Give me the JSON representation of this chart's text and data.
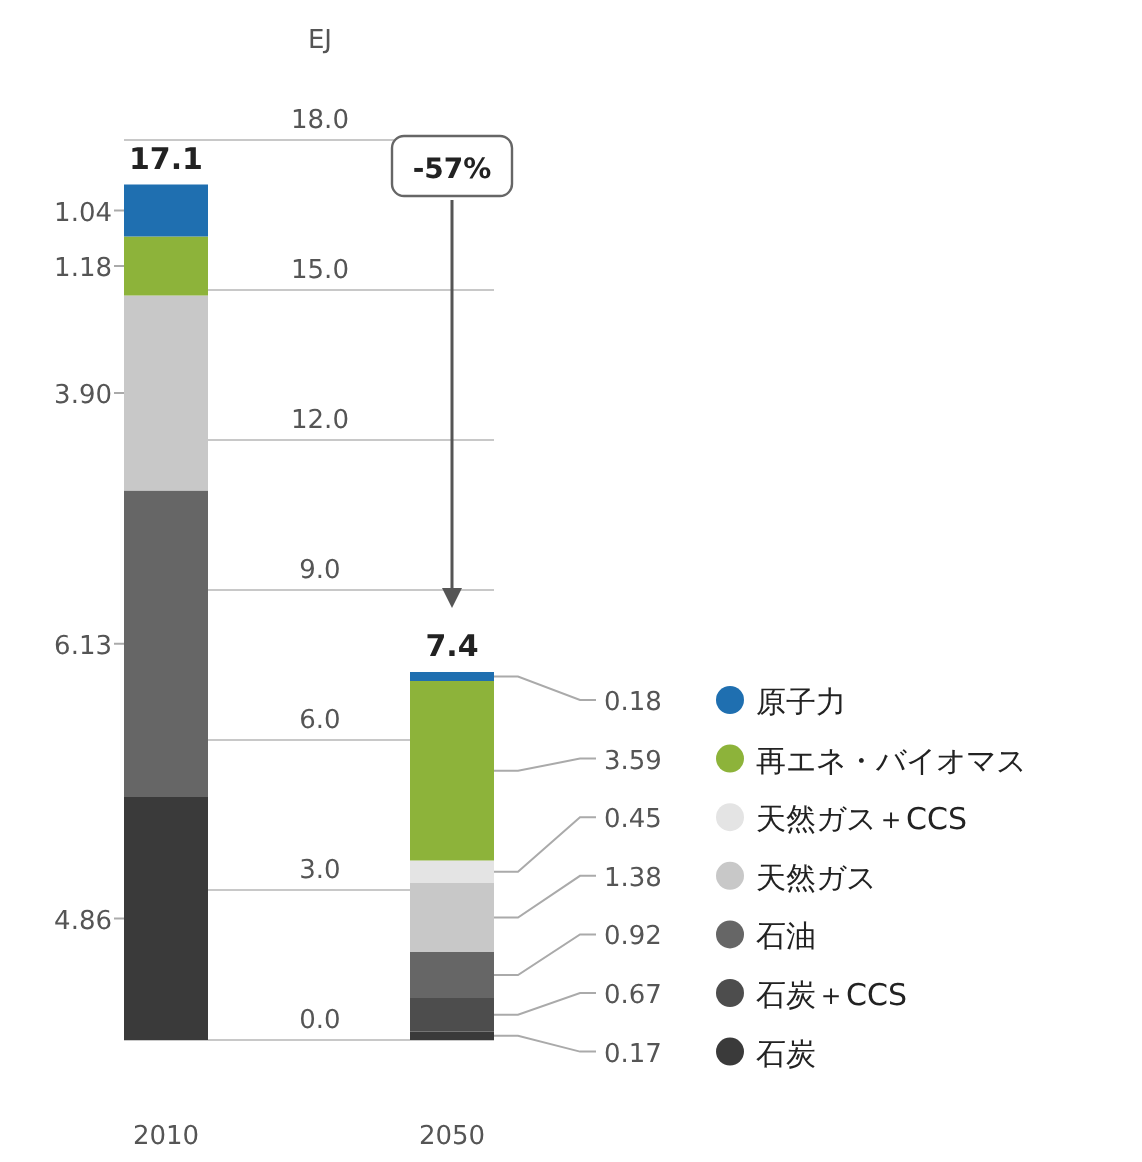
{
  "chart_data": {
    "type": "bar",
    "stacked": true,
    "ylabel": "EJ",
    "categories": [
      "2010",
      "2050"
    ],
    "ylim": [
      0,
      18
    ],
    "yticks": [
      {
        "value": 0,
        "label": "0.0"
      },
      {
        "value": 3,
        "label": "3.0"
      },
      {
        "value": 6,
        "label": "6.0"
      },
      {
        "value": 9,
        "label": "9.0"
      },
      {
        "value": 12,
        "label": "12.0"
      },
      {
        "value": 15,
        "label": "15.0"
      },
      {
        "value": 18,
        "label": "18.0"
      }
    ],
    "series": [
      {
        "name": "石炭",
        "color": "#3a3a3a",
        "values": [
          4.86,
          0.17
        ],
        "value_labels": [
          "4.86",
          "0.17"
        ]
      },
      {
        "name": "石炭＋CCS",
        "color": "#4d4d4d",
        "values": [
          0,
          0.67
        ],
        "value_labels": [
          null,
          "0.67"
        ]
      },
      {
        "name": "石油",
        "color": "#666666",
        "values": [
          6.13,
          0.92
        ],
        "value_labels": [
          "6.13",
          "0.92"
        ]
      },
      {
        "name": "天然ガス",
        "color": "#c8c8c8",
        "values": [
          3.9,
          1.38
        ],
        "value_labels": [
          "3.90",
          "1.38"
        ]
      },
      {
        "name": "天然ガス＋CCS",
        "color": "#e4e4e4",
        "values": [
          0,
          0.45
        ],
        "value_labels": [
          null,
          "0.45"
        ]
      },
      {
        "name": "再エネ・バイオマス",
        "color": "#8db33a",
        "values": [
          1.18,
          3.59
        ],
        "value_labels": [
          "1.18",
          "3.59"
        ]
      },
      {
        "name": "原子力",
        "color": "#1f6fb0",
        "values": [
          1.04,
          0.18
        ],
        "value_labels": [
          "1.04",
          "0.18"
        ]
      }
    ],
    "totals": [
      "17.1",
      "7.4"
    ],
    "annotations": [
      "-57%"
    ],
    "grid": "y",
    "legend": "right"
  }
}
